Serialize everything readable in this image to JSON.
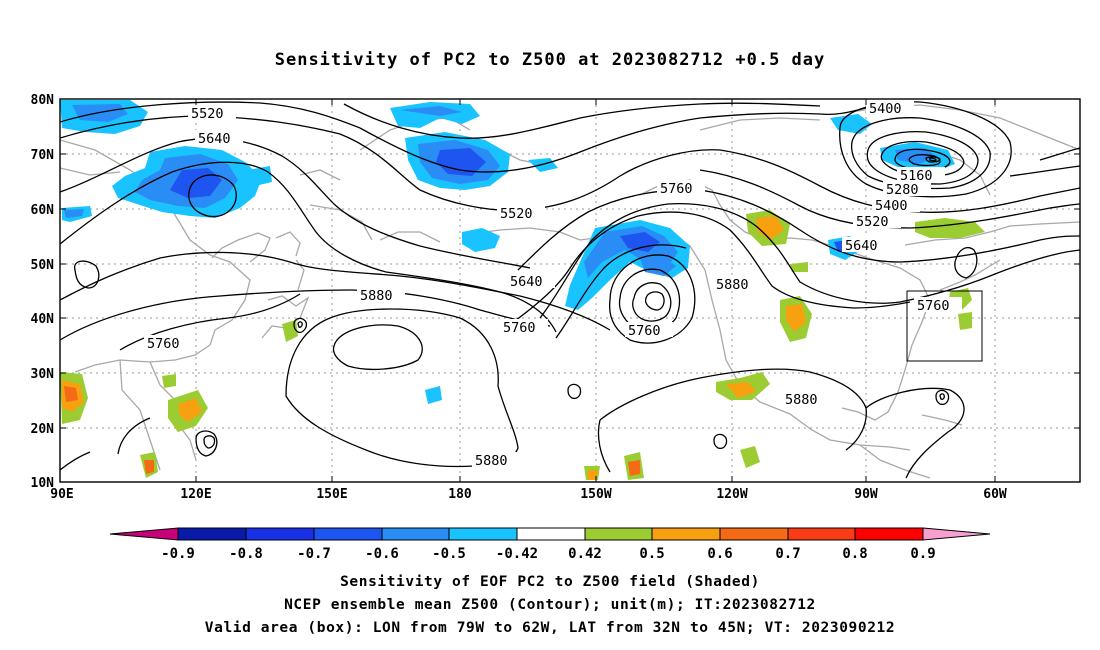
{
  "title": "Sensitivity of PC2 to Z500 at 2023082712 +0.5 day",
  "lat_labels": [
    "80N",
    "70N",
    "60N",
    "50N",
    "40N",
    "30N",
    "20N",
    "10N"
  ],
  "lon_labels": [
    "90E",
    "120E",
    "150E",
    "180",
    "150W",
    "120W",
    "90W",
    "60W"
  ],
  "contour_labels": [
    "5400",
    "5520",
    "5640",
    "5160",
    "5280",
    "5400",
    "5520",
    "5640",
    "5760",
    "5520",
    "5640",
    "5760",
    "5880",
    "5760",
    "5760",
    "5880",
    "5880",
    "5880",
    "5760"
  ],
  "colorbar": {
    "labels": [
      "-0.9",
      "-0.8",
      "-0.7",
      "-0.6",
      "-0.5",
      "-0.42",
      "0.42",
      "0.5",
      "0.6",
      "0.7",
      "0.8",
      "0.9"
    ],
    "colors": {
      "lt_-0.9": "#c8007a",
      "-0.9_-0.8": "#0a1aa8",
      "-0.8_-0.7": "#1830e6",
      "-0.7_-0.6": "#1e55f0",
      "-0.6_-0.5": "#2a8cf5",
      "-0.5_-0.42": "#19c3ff",
      "-0.42_0.42": "#ffffff",
      "0.42_0.5": "#9bcc32",
      "0.5_0.6": "#f7a010",
      "0.6_0.7": "#f56a14",
      "0.7_0.8": "#fa3c16",
      "0.8_0.9": "#ff0000",
      "gt_0.9": "#f7a0d0"
    }
  },
  "captions": [
    "Sensitivity of EOF PC2 to Z500 field (Shaded)",
    "NCEP ensemble mean Z500 (Contour); unit(m); IT:2023082712",
    "Valid area (box): LON from 79W to 62W, LAT from 32N to 45N; VT: 2023090212"
  ],
  "valid_box": {
    "lon_range": [
      "79W",
      "62W"
    ],
    "lat_range": [
      "32N",
      "45N"
    ]
  }
}
